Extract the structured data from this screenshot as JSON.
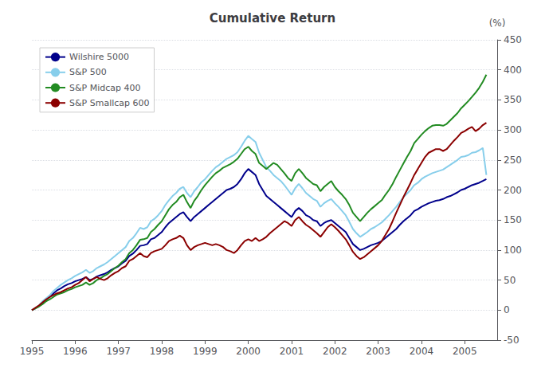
{
  "chart_data": {
    "type": "line",
    "title": "Cumulative Return",
    "ylabel": "(%)",
    "x": [
      1995.0,
      1995.083,
      1995.167,
      1995.25,
      1995.333,
      1995.417,
      1995.5,
      1995.583,
      1995.667,
      1995.75,
      1995.833,
      1995.917,
      1996.0,
      1996.083,
      1996.167,
      1996.25,
      1996.333,
      1996.417,
      1996.5,
      1996.583,
      1996.667,
      1996.75,
      1996.833,
      1996.917,
      1997.0,
      1997.083,
      1997.167,
      1997.25,
      1997.333,
      1997.417,
      1997.5,
      1997.583,
      1997.667,
      1997.75,
      1997.833,
      1997.917,
      1998.0,
      1998.083,
      1998.167,
      1998.25,
      1998.333,
      1998.417,
      1998.5,
      1998.583,
      1998.667,
      1998.75,
      1998.833,
      1998.917,
      1999.0,
      1999.083,
      1999.167,
      1999.25,
      1999.333,
      1999.417,
      1999.5,
      1999.583,
      1999.667,
      1999.75,
      1999.833,
      1999.917,
      2000.0,
      2000.083,
      2000.167,
      2000.25,
      2000.333,
      2000.417,
      2000.5,
      2000.583,
      2000.667,
      2000.75,
      2000.833,
      2000.917,
      2001.0,
      2001.083,
      2001.167,
      2001.25,
      2001.333,
      2001.417,
      2001.5,
      2001.583,
      2001.667,
      2001.75,
      2001.833,
      2001.917,
      2002.0,
      2002.083,
      2002.167,
      2002.25,
      2002.333,
      2002.417,
      2002.5,
      2002.583,
      2002.667,
      2002.75,
      2002.833,
      2002.917,
      2003.0,
      2003.083,
      2003.167,
      2003.25,
      2003.333,
      2003.417,
      2003.5,
      2003.583,
      2003.667,
      2003.75,
      2003.833,
      2003.917,
      2004.0,
      2004.083,
      2004.167,
      2004.25,
      2004.333,
      2004.417,
      2004.5,
      2004.583,
      2004.667,
      2004.75,
      2004.833,
      2004.917,
      2005.0,
      2005.083,
      2005.167,
      2005.25,
      2005.333,
      2005.417,
      2005.5
    ],
    "series": [
      {
        "name": "Wilshire 5000",
        "color": "#00008B",
        "values": [
          0,
          3,
          7,
          13,
          18,
          22,
          28,
          33,
          36,
          40,
          43,
          45,
          48,
          50,
          52,
          55,
          50,
          52,
          56,
          58,
          60,
          63,
          67,
          70,
          73,
          78,
          82,
          90,
          94,
          100,
          107,
          108,
          110,
          118,
          120,
          125,
          130,
          138,
          145,
          150,
          155,
          160,
          163,
          155,
          148,
          155,
          160,
          165,
          170,
          175,
          180,
          185,
          190,
          195,
          200,
          202,
          205,
          210,
          218,
          228,
          235,
          230,
          225,
          210,
          200,
          190,
          185,
          180,
          175,
          170,
          165,
          160,
          155,
          165,
          170,
          165,
          158,
          155,
          150,
          148,
          140,
          145,
          148,
          150,
          145,
          140,
          135,
          130,
          120,
          110,
          105,
          100,
          102,
          105,
          108,
          110,
          112,
          115,
          120,
          125,
          130,
          135,
          142,
          148,
          153,
          158,
          165,
          168,
          172,
          175,
          178,
          180,
          182,
          183,
          185,
          188,
          190,
          193,
          196,
          200,
          202,
          205,
          208,
          210,
          212,
          215,
          218
        ]
      },
      {
        "name": "S&P 500",
        "color": "#87CEEB",
        "values": [
          0,
          3,
          8,
          15,
          20,
          25,
          32,
          37,
          42,
          46,
          50,
          53,
          57,
          60,
          63,
          67,
          62,
          65,
          70,
          73,
          76,
          80,
          85,
          90,
          95,
          100,
          105,
          115,
          120,
          128,
          137,
          135,
          138,
          148,
          152,
          158,
          165,
          175,
          183,
          190,
          195,
          202,
          205,
          195,
          188,
          198,
          205,
          213,
          218,
          225,
          232,
          238,
          242,
          247,
          252,
          255,
          258,
          263,
          272,
          282,
          290,
          285,
          280,
          262,
          250,
          238,
          232,
          225,
          220,
          215,
          208,
          200,
          192,
          203,
          210,
          203,
          195,
          190,
          185,
          182,
          172,
          178,
          182,
          185,
          178,
          172,
          165,
          158,
          147,
          135,
          128,
          122,
          126,
          130,
          135,
          138,
          142,
          146,
          152,
          158,
          165,
          172,
          180,
          188,
          194,
          200,
          208,
          212,
          218,
          222,
          225,
          228,
          230,
          232,
          234,
          238,
          242,
          246,
          250,
          255,
          256,
          258,
          262,
          263,
          266,
          270,
          225
        ]
      },
      {
        "name": "S&P Midcap 400",
        "color": "#228B22",
        "values": [
          0,
          3,
          6,
          10,
          15,
          18,
          22,
          26,
          28,
          30,
          33,
          35,
          38,
          40,
          42,
          46,
          42,
          45,
          50,
          53,
          57,
          60,
          65,
          70,
          74,
          80,
          85,
          95,
          100,
          108,
          117,
          118,
          120,
          130,
          135,
          142,
          148,
          158,
          168,
          175,
          180,
          188,
          192,
          180,
          170,
          182,
          190,
          200,
          208,
          215,
          222,
          228,
          232,
          237,
          240,
          243,
          247,
          252,
          260,
          268,
          272,
          265,
          260,
          245,
          240,
          235,
          240,
          245,
          242,
          235,
          228,
          220,
          215,
          228,
          235,
          228,
          220,
          215,
          210,
          208,
          198,
          205,
          210,
          215,
          205,
          198,
          192,
          185,
          175,
          162,
          155,
          148,
          155,
          162,
          168,
          173,
          178,
          183,
          192,
          200,
          210,
          222,
          233,
          244,
          255,
          265,
          278,
          285,
          292,
          298,
          303,
          307,
          308,
          308,
          307,
          310,
          316,
          322,
          328,
          336,
          342,
          348,
          355,
          362,
          370,
          380,
          392
        ]
      },
      {
        "name": "S&P Smallcap 600",
        "color": "#8B0000",
        "values": [
          0,
          4,
          8,
          13,
          18,
          22,
          25,
          28,
          30,
          33,
          36,
          38,
          42,
          45,
          50,
          55,
          48,
          52,
          55,
          52,
          50,
          53,
          58,
          62,
          65,
          70,
          73,
          82,
          85,
          90,
          95,
          90,
          88,
          95,
          98,
          100,
          102,
          108,
          115,
          118,
          120,
          124,
          120,
          108,
          100,
          105,
          108,
          110,
          112,
          110,
          108,
          110,
          108,
          105,
          100,
          98,
          95,
          100,
          108,
          115,
          118,
          115,
          120,
          115,
          118,
          122,
          128,
          133,
          138,
          143,
          148,
          145,
          140,
          150,
          155,
          148,
          142,
          138,
          133,
          128,
          122,
          130,
          138,
          143,
          138,
          132,
          125,
          118,
          108,
          97,
          90,
          85,
          88,
          93,
          98,
          103,
          108,
          115,
          125,
          135,
          148,
          162,
          175,
          188,
          200,
          212,
          225,
          235,
          245,
          255,
          262,
          265,
          268,
          268,
          265,
          268,
          275,
          282,
          288,
          295,
          298,
          302,
          305,
          298,
          302,
          308,
          312
        ]
      }
    ],
    "xlim": [
      1995.0,
      2005.75
    ],
    "xticks": [
      1995,
      1996,
      1997,
      1998,
      1999,
      2000,
      2001,
      2002,
      2003,
      2004,
      2005
    ],
    "ylim": [
      -50,
      450
    ],
    "yticks": [
      -50,
      0,
      50,
      100,
      150,
      200,
      250,
      300,
      350,
      400,
      450
    ],
    "grid": true,
    "legend": "upper left",
    "line_style": "solid",
    "marker": "none"
  }
}
